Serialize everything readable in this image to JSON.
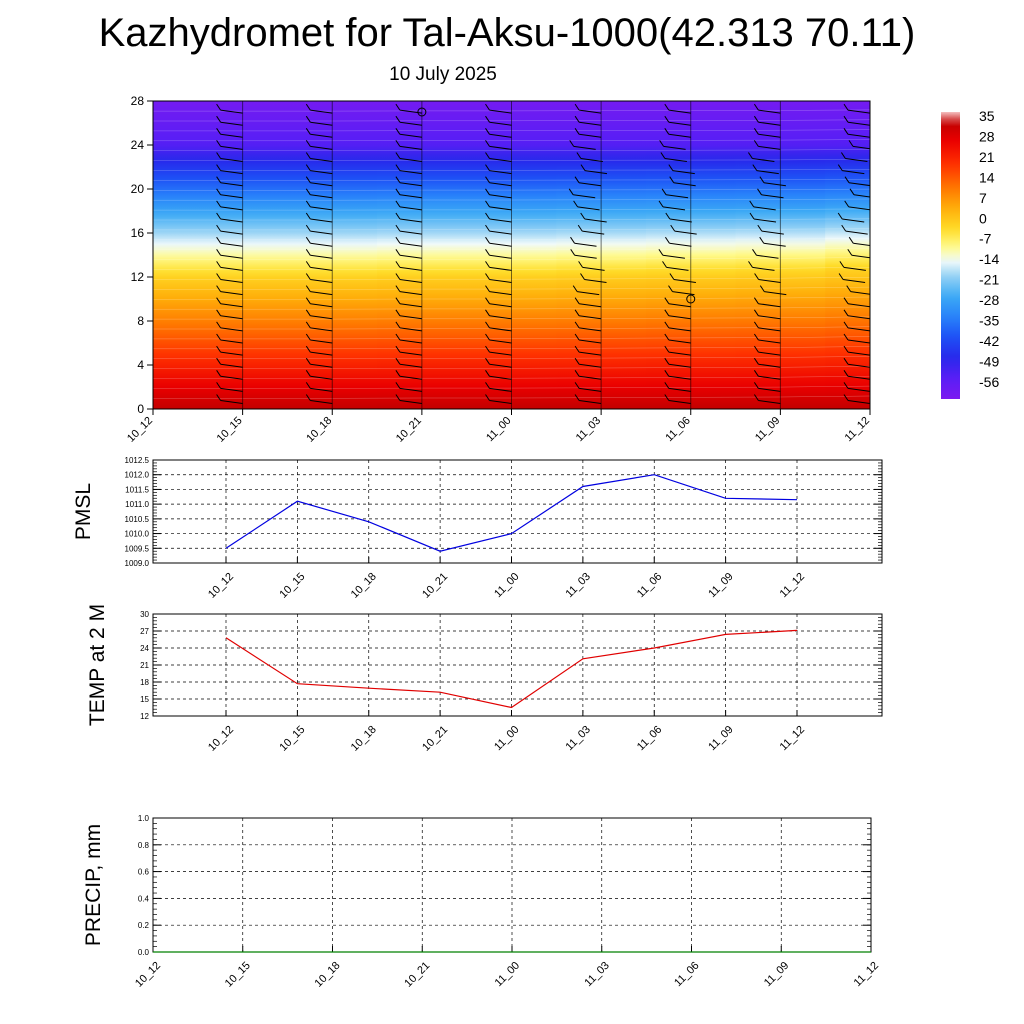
{
  "header": {
    "title": "Kazhydromet for Tal-Aksu-1000(42.313 70.11)",
    "subtitle": "10 July 2025"
  },
  "chart_data": [
    {
      "type": "heatmap",
      "name": "upper-air temperature cross-section",
      "x": [
        "10_12",
        "10_15",
        "10_18",
        "10_21",
        "11_00",
        "11_03",
        "11_06",
        "11_09",
        "11_12"
      ],
      "y_ticks": [
        0,
        4,
        8,
        12,
        16,
        20,
        24,
        28
      ],
      "ylim": [
        0,
        28
      ],
      "zero_line": [
        11.9,
        11.9,
        11.9,
        12.0,
        12.0,
        12.1,
        12.2,
        12.3,
        12.6
      ],
      "colorbar": {
        "labels": [
          "35",
          "28",
          "21",
          "14",
          "7",
          "0",
          "-7",
          "-14",
          "-21",
          "-28",
          "-35",
          "-42",
          "-49",
          "-56"
        ],
        "range": [
          -60,
          38
        ]
      },
      "grid": false
    },
    {
      "type": "line",
      "ylabel": "PMSL",
      "categories": [
        "10_12",
        "10_15",
        "10_18",
        "10_21",
        "11_00",
        "11_03",
        "11_06",
        "11_09",
        "11_12"
      ],
      "values": [
        1009.5,
        1011.1,
        1010.4,
        1009.4,
        1010.0,
        1011.6,
        1012.0,
        1011.2,
        1011.15
      ],
      "ylim": [
        1009.0,
        1012.5
      ],
      "y_ticks": [
        "1009.0",
        "1009.5",
        "1010.0",
        "1010.5",
        "1011.0",
        "1011.5",
        "1012.0",
        "1012.5"
      ],
      "color": "#0000e0",
      "grid": true
    },
    {
      "type": "line",
      "ylabel": "TEMP at 2 M",
      "categories": [
        "10_12",
        "10_15",
        "10_18",
        "10_21",
        "11_00",
        "11_03",
        "11_06",
        "11_09",
        "11_12"
      ],
      "values": [
        25.8,
        17.7,
        16.9,
        16.2,
        13.5,
        22.1,
        24.0,
        26.4,
        27.1
      ],
      "ylim": [
        12,
        30
      ],
      "y_ticks": [
        "12",
        "15",
        "18",
        "21",
        "24",
        "27",
        "30"
      ],
      "color": "#e00000",
      "grid": true
    },
    {
      "type": "line",
      "ylabel": "PRECIP, mm",
      "categories": [
        "10_12",
        "10_15",
        "10_18",
        "10_21",
        "11_00",
        "11_03",
        "11_06",
        "11_09",
        "11_12"
      ],
      "values": [
        0,
        0,
        0,
        0,
        0,
        0,
        0,
        0,
        0
      ],
      "ylim": [
        0,
        1.0
      ],
      "y_ticks": [
        "0.0",
        "0.2",
        "0.4",
        "0.6",
        "0.8",
        "1.0"
      ],
      "color": "#008000",
      "grid": true
    }
  ]
}
